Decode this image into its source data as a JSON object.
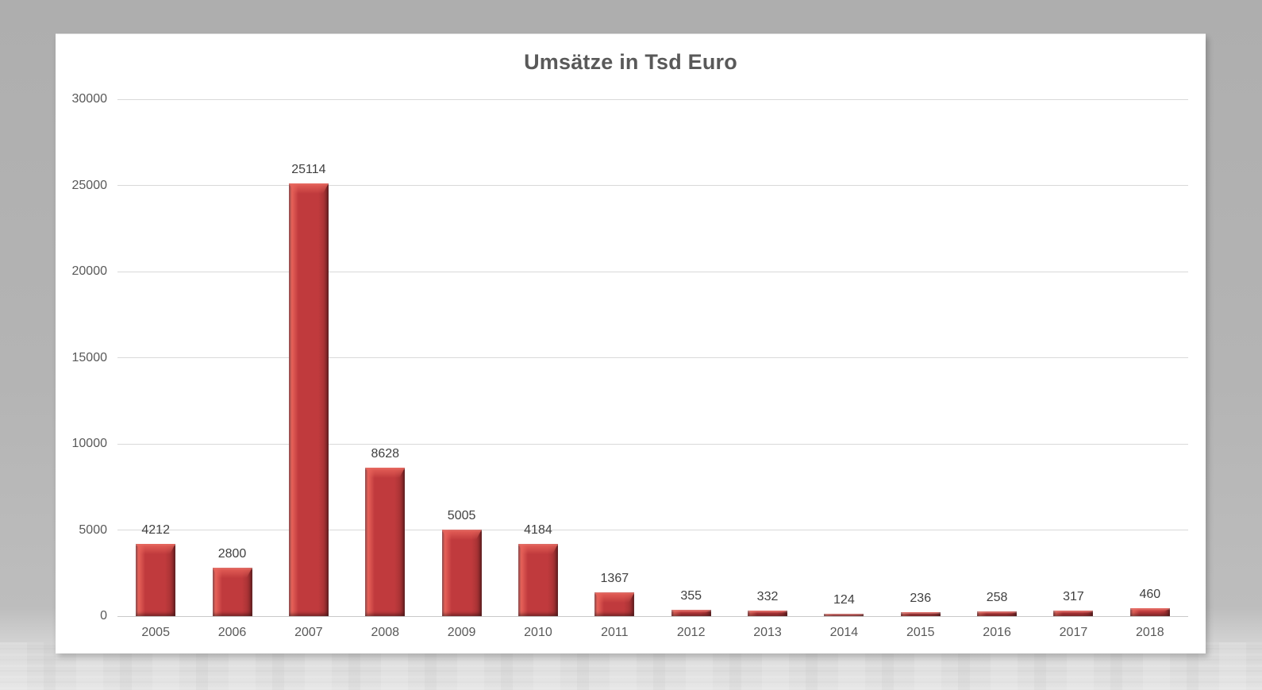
{
  "chart_data": {
    "type": "bar",
    "title": "Umsätze in Tsd Euro",
    "categories": [
      "2005",
      "2006",
      "2007",
      "2008",
      "2009",
      "2010",
      "2011",
      "2012",
      "2013",
      "2014",
      "2015",
      "2016",
      "2017",
      "2018"
    ],
    "values": [
      4212,
      2800,
      25114,
      8628,
      5005,
      4184,
      1367,
      355,
      332,
      124,
      236,
      258,
      317,
      460
    ],
    "data_labels": [
      4212,
      2800,
      25114,
      8628,
      5005,
      4184,
      1367,
      355,
      332,
      124,
      236,
      258,
      317,
      460
    ],
    "xlabel": "",
    "ylabel": "",
    "ylim": [
      0,
      30000
    ],
    "ytick_step": 5000,
    "ytick_labels": [
      "0",
      "5000",
      "10000",
      "15000",
      "20000",
      "25000",
      "30000"
    ],
    "grid": true,
    "legend_position": "none",
    "bar_style": "3d-bevel",
    "colors": {
      "bar_fill": "#c03a3d",
      "bar_highlight": "#e8635a",
      "bar_edge_dark": "#8e2a2c",
      "bar_side_dark": "#a03032",
      "gridline": "#d9d9d9",
      "axis_line": "#c9c9c9",
      "title_text": "#595959",
      "tick_text": "#595959",
      "value_text": "#404040",
      "card_background": "#ffffff",
      "page_background_top": "#aeaeae",
      "page_background_bottom": "#e3e3e3"
    }
  }
}
